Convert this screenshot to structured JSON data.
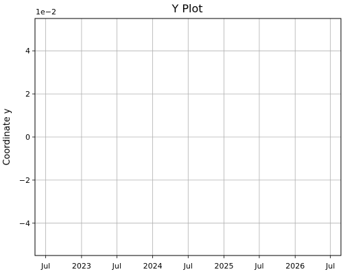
{
  "chart_data": {
    "type": "line",
    "title": "Y Plot",
    "xlabel": "",
    "ylabel": "Coordinate y",
    "scale_label": "1e−2",
    "x_ticks": [
      {
        "label": "Jul",
        "value": "2022-07-01"
      },
      {
        "label": "2023",
        "value": "2023-01-01"
      },
      {
        "label": "Jul",
        "value": "2023-07-01"
      },
      {
        "label": "2024",
        "value": "2024-01-01"
      },
      {
        "label": "Jul",
        "value": "2024-07-01"
      },
      {
        "label": "2025",
        "value": "2025-01-01"
      },
      {
        "label": "Jul",
        "value": "2025-07-01"
      },
      {
        "label": "2026",
        "value": "2026-01-01"
      },
      {
        "label": "Jul",
        "value": "2026-07-01"
      }
    ],
    "y_ticks": [
      {
        "label": "−4",
        "value": -0.04
      },
      {
        "label": "−2",
        "value": -0.02
      },
      {
        "label": "0",
        "value": 0
      },
      {
        "label": "2",
        "value": 0.02
      },
      {
        "label": "4",
        "value": 0.04
      }
    ],
    "xlim": [
      "2022-05-07",
      "2026-08-24"
    ],
    "ylim": [
      -0.055,
      0.055
    ],
    "grid": true,
    "series": [
      {
        "values": []
      }
    ],
    "colors": {
      "grid": "#b0b0b0",
      "axis": "#000000"
    }
  }
}
